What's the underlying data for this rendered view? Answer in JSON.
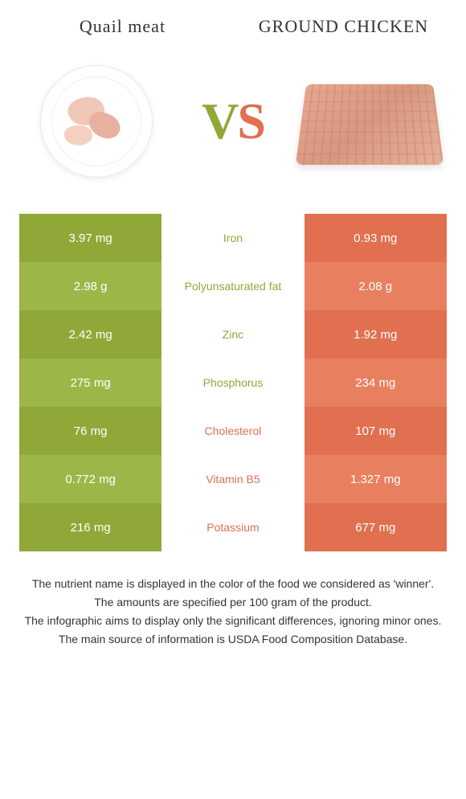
{
  "titles": {
    "left": "Quail meat",
    "right": "GROUND CHICKEN"
  },
  "vs": {
    "v": "V",
    "s": "S"
  },
  "colors": {
    "green_main": "#8fa838",
    "green_alt": "#9db648",
    "orange_main": "#e07050",
    "orange_alt": "#e88060",
    "bg": "#ffffff"
  },
  "nutrients": [
    {
      "left": "3.97 mg",
      "name": "Iron",
      "right": "0.93 mg",
      "winner": "green"
    },
    {
      "left": "2.98 g",
      "name": "Polyunsaturated fat",
      "right": "2.08 g",
      "winner": "green"
    },
    {
      "left": "2.42 mg",
      "name": "Zinc",
      "right": "1.92 mg",
      "winner": "green"
    },
    {
      "left": "275 mg",
      "name": "Phosphorus",
      "right": "234 mg",
      "winner": "green"
    },
    {
      "left": "76 mg",
      "name": "Cholesterol",
      "right": "107 mg",
      "winner": "orange"
    },
    {
      "left": "0.772 mg",
      "name": "Vitamin B5",
      "right": "1.327 mg",
      "winner": "orange"
    },
    {
      "left": "216 mg",
      "name": "Potassium",
      "right": "677 mg",
      "winner": "orange"
    }
  ],
  "footer": {
    "line1": "The nutrient name is displayed in the color of the food we considered as 'winner'.",
    "line2": "The amounts are specified per 100 gram of the product.",
    "line3": "The infographic aims to display only the significant differences, ignoring minor ones.",
    "line4": "The main source of information is USDA Food Composition Database."
  }
}
